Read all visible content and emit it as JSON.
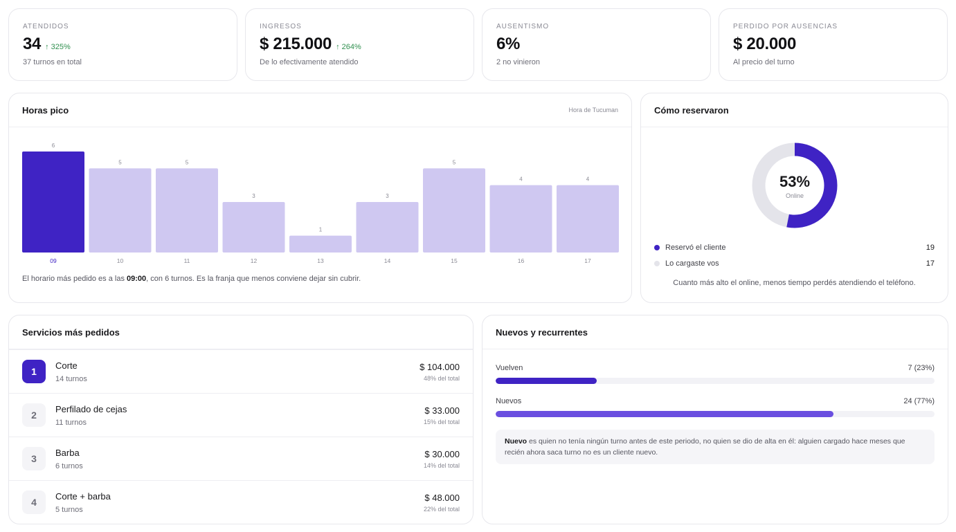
{
  "kpis": [
    {
      "label": "ATENDIDOS",
      "value": "34",
      "trend": "↑ 325%",
      "sub": "37 turnos en total"
    },
    {
      "label": "INGRESOS",
      "value": "$ 215.000",
      "trend": "↑ 264%",
      "sub": "De lo efectivamente atendido"
    },
    {
      "label": "AUSENTISMO",
      "value": "6%",
      "trend": "",
      "sub": "2 no vinieron"
    },
    {
      "label": "PERDIDO POR AUSENCIAS",
      "value": "$ 20.000",
      "trend": "",
      "sub": "Al precio del turno"
    }
  ],
  "peak": {
    "title": "Horas pico",
    "note": "Hora de Tucuman",
    "caption_pre": "El horario más pedido es a las ",
    "caption_bold": "09:00",
    "caption_post": ", con 6 turnos. Es la franja que menos conviene dejar sin cubrir."
  },
  "chart_data": {
    "type": "bar",
    "categories": [
      "09",
      "10",
      "11",
      "12",
      "13",
      "14",
      "15",
      "16",
      "17"
    ],
    "values": [
      6,
      5,
      5,
      3,
      1,
      3,
      5,
      4,
      4
    ],
    "highlight_index": 0,
    "highlight_color": "#3f23c4",
    "bar_color": "#cfc8f1",
    "title": "Horas pico",
    "ylim": [
      0,
      6
    ]
  },
  "booking": {
    "title": "Cómo reservaron",
    "percent": "53%",
    "percent_value": 53,
    "center_label": "Online",
    "online_color": "#3f23c4",
    "rest_color": "#e4e4ea",
    "legend": [
      {
        "label": "Reservó el cliente",
        "count": "19",
        "color": "#3f23c4"
      },
      {
        "label": "Lo cargaste vos",
        "count": "17",
        "color": "#e4e4ea"
      }
    ],
    "caption": "Cuanto más alto el online, menos tiempo perdés atendiendo el teléfono."
  },
  "services": {
    "title": "Servicios más pedidos",
    "items": [
      {
        "rank": "1",
        "name": "Corte",
        "count": "14 turnos",
        "amount": "$ 104.000",
        "share": "48% del total"
      },
      {
        "rank": "2",
        "name": "Perfilado de cejas",
        "count": "11 turnos",
        "amount": "$ 33.000",
        "share": "15% del total"
      },
      {
        "rank": "3",
        "name": "Barba",
        "count": "6 turnos",
        "amount": "$ 30.000",
        "share": "14% del total"
      },
      {
        "rank": "4",
        "name": "Corte + barba",
        "count": "5 turnos",
        "amount": "$ 48.000",
        "share": "22% del total"
      }
    ]
  },
  "clients": {
    "title": "Nuevos y recurrentes",
    "rows": [
      {
        "label": "Vuelven",
        "value": "7 (23%)",
        "fraction": 0.23,
        "color": "#3f23c4"
      },
      {
        "label": "Nuevos",
        "value": "24 (77%)",
        "fraction": 0.77,
        "color": "#6a4fe0"
      }
    ],
    "info_bold": "Nuevo",
    "info_text": " es quien no tenía ningún turno antes de este periodo, no quien se dio de alta en él: alguien cargado hace meses que recién ahora saca turno no es un cliente nuevo."
  }
}
